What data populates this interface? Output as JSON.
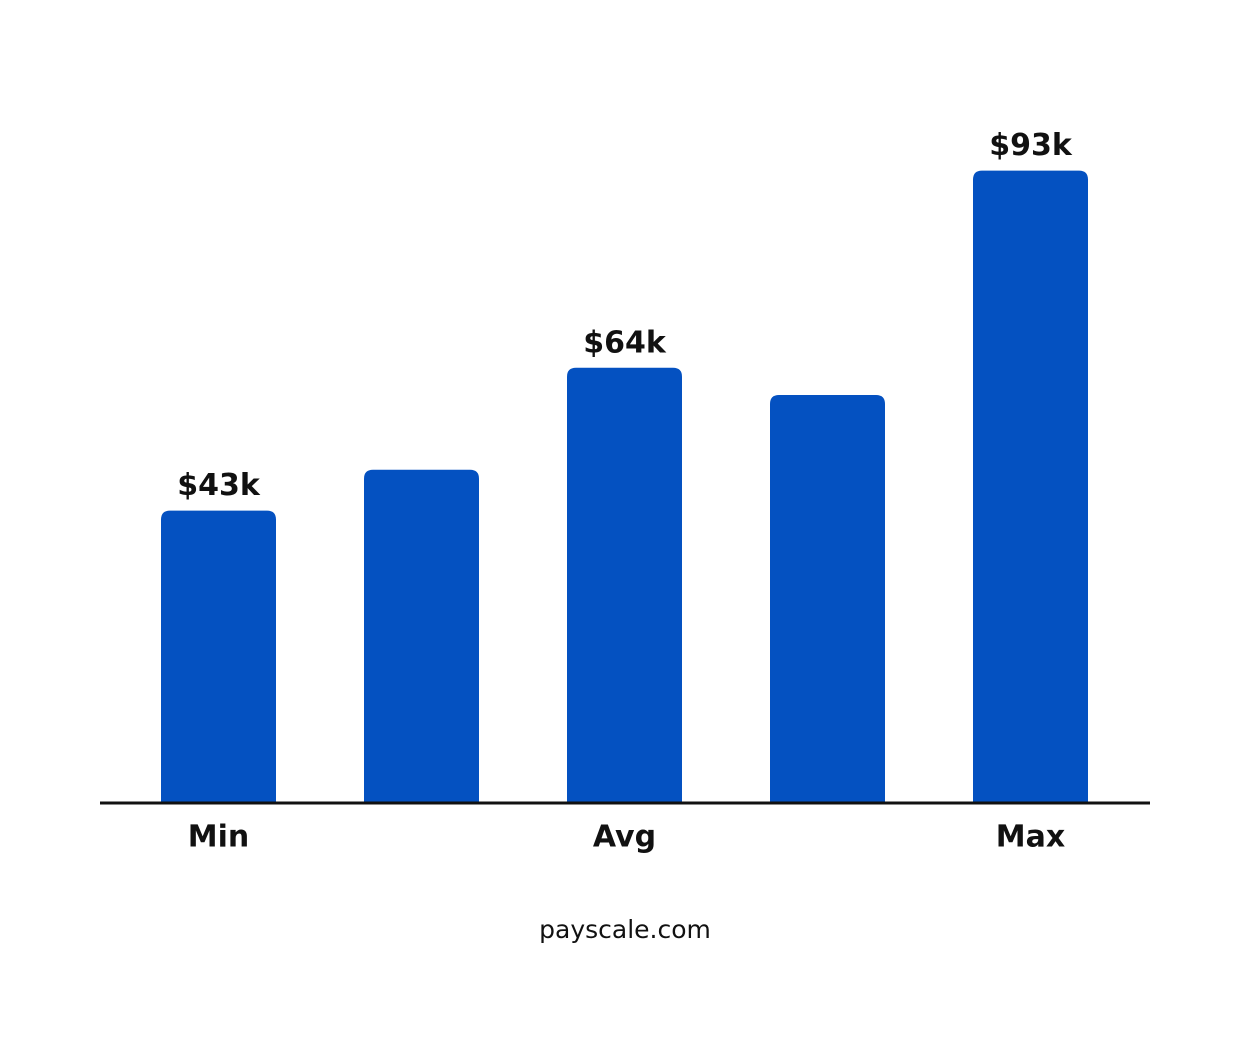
{
  "chart_data": {
    "type": "bar",
    "categories": [
      "Min",
      null,
      "Avg",
      null,
      "Max"
    ],
    "values": [
      43000,
      49000,
      64000,
      60000,
      93000
    ],
    "value_labels": [
      "$43k",
      null,
      "$64k",
      null,
      "$93k"
    ],
    "color": "#0451c1",
    "ylim": [
      0,
      100000
    ],
    "source": "payscale.com"
  }
}
